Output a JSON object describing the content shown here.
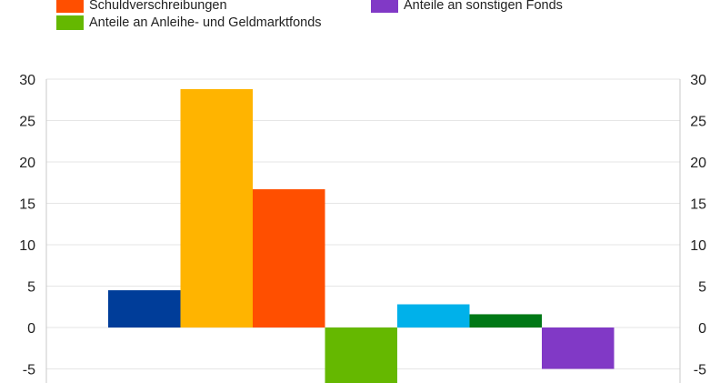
{
  "chart_data": {
    "type": "bar",
    "title": "",
    "xlabel": "",
    "ylabel": "",
    "ylim": [
      -5,
      30
    ],
    "yticks": [
      -5,
      0,
      5,
      10,
      15,
      20,
      25,
      30
    ],
    "grid": true,
    "legend_position": "top",
    "legend": [
      {
        "name": "Schuldverschreibungen",
        "color": "#ff4f00"
      },
      {
        "name": "Anteile an sonstigen Fonds",
        "color": "#8139c6"
      },
      {
        "name": "Anteile an Anleihe- und Geldmarktfonds",
        "color": "#65b800"
      }
    ],
    "bars": [
      {
        "value": 4.5,
        "color": "#003d99"
      },
      {
        "value": 28.8,
        "color": "#ffb400"
      },
      {
        "value": 16.7,
        "color": "#ff4f00"
      },
      {
        "value": -6.9,
        "color": "#65b800"
      },
      {
        "value": 2.8,
        "color": "#00b1ea"
      },
      {
        "value": 1.6,
        "color": "#007816"
      },
      {
        "value": -5.0,
        "color": "#8139c6"
      }
    ]
  }
}
